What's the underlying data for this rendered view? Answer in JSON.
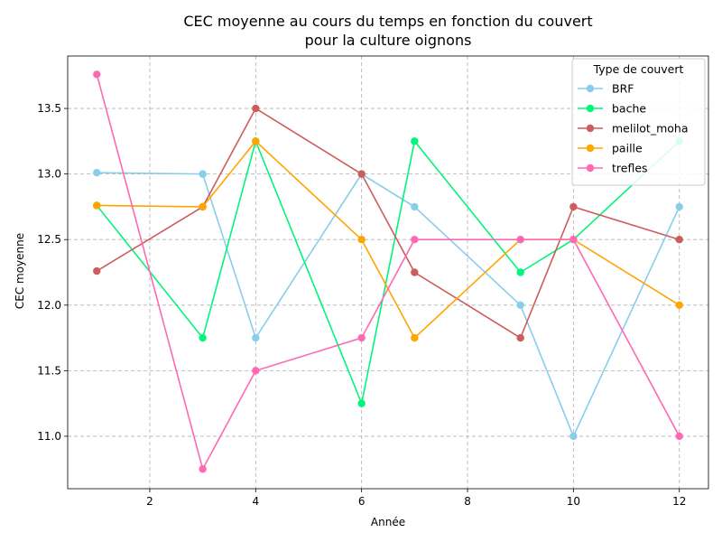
{
  "chart_data": {
    "type": "line",
    "title_lines": [
      "CEC moyenne au cours du temps en fonction du couvert",
      "pour la culture oignons"
    ],
    "xlabel": "Année",
    "ylabel": "CEC moyenne",
    "xlim": [
      0.45,
      12.55
    ],
    "ylim": [
      10.6,
      13.9
    ],
    "xticks": [
      2,
      4,
      6,
      8,
      10,
      12
    ],
    "yticks": [
      11.0,
      11.5,
      12.0,
      12.5,
      13.0,
      13.5
    ],
    "xtick_labels": [
      "2",
      "4",
      "6",
      "8",
      "10",
      "12"
    ],
    "ytick_labels": [
      "11.0",
      "11.5",
      "12.0",
      "12.5",
      "13.0",
      "13.5"
    ],
    "grid": true,
    "legend": {
      "title": "Type de couvert",
      "placement": "top-right"
    },
    "series": [
      {
        "name": "BRF",
        "color": "#87CEEB",
        "points": [
          [
            1,
            13.01
          ],
          [
            3,
            13.0
          ],
          [
            4,
            11.75
          ],
          [
            6,
            13.0
          ],
          [
            7,
            12.75
          ],
          [
            9,
            12.0
          ],
          [
            10,
            11.0
          ],
          [
            12,
            12.75
          ]
        ]
      },
      {
        "name": "bache",
        "color": "#00F57A",
        "points": [
          [
            1,
            12.76
          ],
          [
            3,
            11.75
          ],
          [
            4,
            13.25
          ],
          [
            6,
            11.25
          ],
          [
            7,
            13.25
          ],
          [
            9,
            12.25
          ],
          [
            10,
            12.5
          ],
          [
            12,
            13.25
          ]
        ]
      },
      {
        "name": "melilot_moha",
        "color": "#CD5C5C",
        "points": [
          [
            1,
            12.26
          ],
          [
            3,
            12.75
          ],
          [
            4,
            13.5
          ],
          [
            6,
            13.0
          ],
          [
            7,
            12.25
          ],
          [
            9,
            11.75
          ],
          [
            10,
            12.75
          ],
          [
            12,
            12.5
          ]
        ]
      },
      {
        "name": "paille",
        "color": "#FFA500",
        "points": [
          [
            1,
            12.76
          ],
          [
            3,
            12.75
          ],
          [
            4,
            13.25
          ],
          [
            6,
            12.5
          ],
          [
            7,
            11.75
          ],
          [
            9,
            12.5
          ],
          [
            10,
            12.5
          ],
          [
            12,
            12.0
          ]
        ]
      },
      {
        "name": "trefles",
        "color": "#FF69B4",
        "points": [
          [
            1,
            13.76
          ],
          [
            3,
            10.75
          ],
          [
            4,
            11.5
          ],
          [
            6,
            11.75
          ],
          [
            7,
            12.5
          ],
          [
            9,
            12.5
          ],
          [
            10,
            12.5
          ],
          [
            12,
            11.0
          ]
        ]
      }
    ]
  }
}
